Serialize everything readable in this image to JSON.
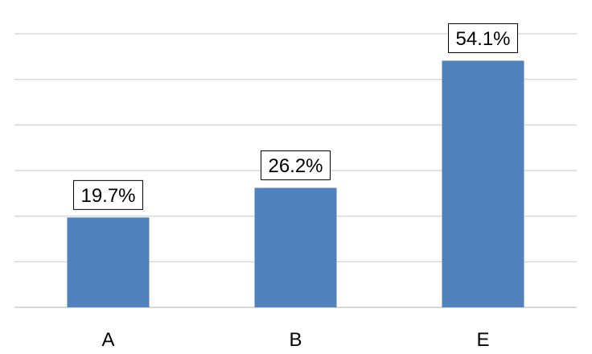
{
  "chart_data": {
    "type": "bar",
    "categories": [
      "A",
      "B",
      "E"
    ],
    "values": [
      19.7,
      26.2,
      54.1
    ],
    "data_labels": [
      "19.7%",
      "26.2%",
      "54.1%"
    ],
    "ylim": [
      0,
      60
    ],
    "grid": true,
    "legend": "none",
    "bar_color": "#4f81bd"
  }
}
